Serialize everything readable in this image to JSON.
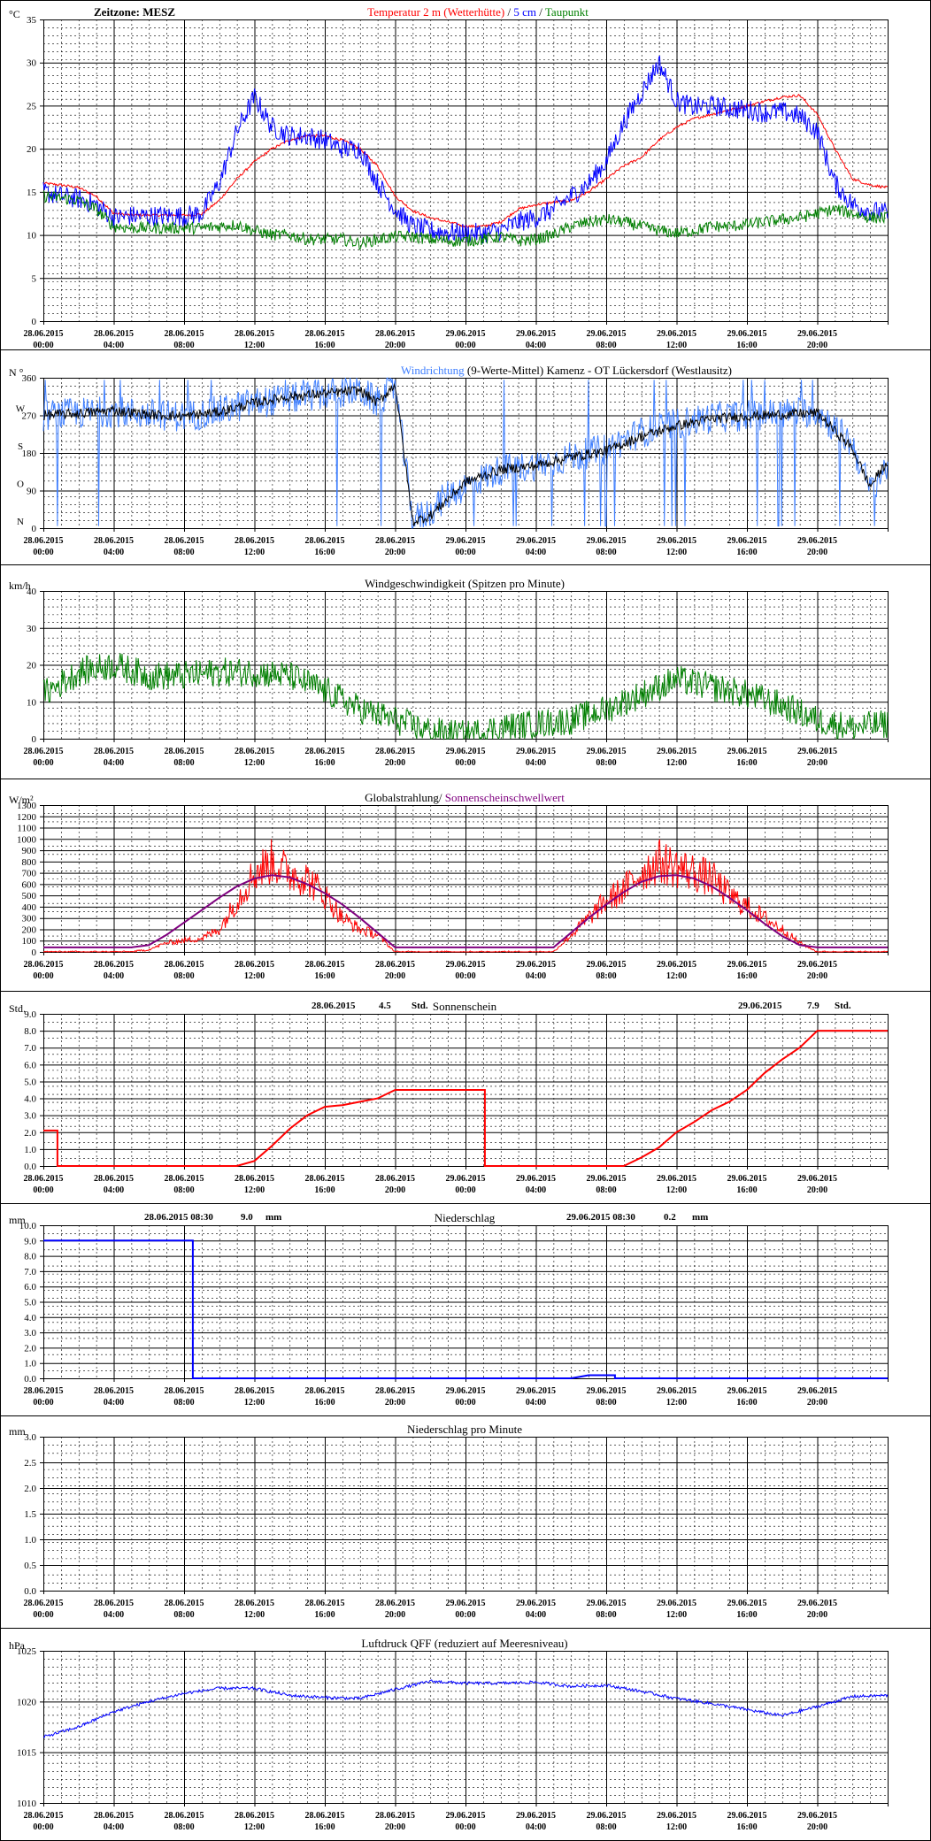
{
  "x_tick_labels": [
    [
      "28.06.2015",
      "00:00"
    ],
    [
      "28.06.2015",
      "04:00"
    ],
    [
      "28.06.2015",
      "08:00"
    ],
    [
      "28.06.2015",
      "12:00"
    ],
    [
      "28.06.2015",
      "16:00"
    ],
    [
      "28.06.2015",
      "20:00"
    ],
    [
      "29.06.2015",
      "00:00"
    ],
    [
      "29.06.2015",
      "04:00"
    ],
    [
      "29.06.2015",
      "08:00"
    ],
    [
      "29.06.2015",
      "12:00"
    ],
    [
      "29.06.2015",
      "16:00"
    ],
    [
      "29.06.2015",
      "20:00"
    ]
  ],
  "colors": {
    "red": "#ff0000",
    "blue": "#0000ff",
    "lightblue": "#3f7fff",
    "green": "#007f00",
    "purple": "#7f007f",
    "black": "#000000",
    "grid": "#000000"
  },
  "charts": [
    {
      "id": "temperature",
      "unit": "°C",
      "header_left": "Zeitzone: MESZ",
      "title_parts": [
        {
          "text": "Temperatur 2 m (Wetterhütte)",
          "color": "red"
        },
        {
          "text": "  /  ",
          "color": "black"
        },
        {
          "text": "5 cm",
          "color": "blue"
        },
        {
          "text": " / ",
          "color": "black"
        },
        {
          "text": "Taupunkt",
          "color": "green"
        }
      ],
      "ylim": [
        0,
        35
      ],
      "y_ticks": [
        0,
        5,
        10,
        15,
        20,
        25,
        30,
        35
      ],
      "y_tick_labels": [
        "0",
        "5",
        "10",
        "15",
        "20",
        "25",
        "30",
        "35"
      ],
      "series": [
        {
          "color": "red",
          "noise": 0.15,
          "x": [
            0,
            1,
            2,
            3,
            4,
            5,
            6,
            7,
            8,
            9,
            10,
            11,
            12,
            13,
            14,
            15,
            16,
            17,
            18,
            19,
            20,
            21,
            22,
            23,
            24,
            25,
            26,
            27,
            28,
            29,
            30,
            31,
            32,
            33,
            34,
            35,
            36,
            37,
            38,
            39,
            40,
            41,
            42,
            43,
            44,
            45,
            46,
            47,
            48
          ],
          "y": [
            16,
            15.8,
            15.5,
            14.5,
            12.5,
            12.3,
            12.3,
            12.3,
            12.3,
            12.4,
            14,
            16.5,
            18.5,
            20,
            21,
            21.5,
            21.5,
            21,
            20,
            18,
            14.5,
            12.8,
            12,
            11.5,
            11,
            11,
            11.5,
            13,
            13.5,
            13.8,
            14,
            15,
            16.5,
            18,
            19,
            21,
            22.5,
            23.5,
            24,
            24.5,
            25,
            25.5,
            26,
            26.2,
            24,
            20,
            16.5,
            15.8,
            15.5
          ]
        },
        {
          "color": "blue",
          "noise": 1.2,
          "x": [
            0,
            1,
            2,
            3,
            4,
            5,
            6,
            7,
            8,
            9,
            10,
            11,
            12,
            13,
            14,
            15,
            16,
            17,
            18,
            19,
            20,
            21,
            22,
            23,
            24,
            25,
            26,
            27,
            28,
            29,
            30,
            31,
            32,
            33,
            34,
            35,
            36,
            37,
            38,
            39,
            40,
            41,
            42,
            43,
            44,
            45,
            46,
            47,
            48
          ],
          "y": [
            15,
            14.5,
            14.2,
            13.5,
            12,
            12.2,
            12.2,
            12.2,
            12.2,
            12.5,
            16,
            22,
            26,
            22.5,
            21.5,
            21.5,
            21,
            20,
            20,
            16,
            13,
            11,
            10.5,
            10.3,
            10.2,
            10.2,
            10.5,
            11.5,
            12,
            13,
            14.5,
            16,
            18.5,
            23,
            26.5,
            30,
            25.5,
            24.8,
            25,
            24.7,
            24.5,
            24.2,
            24.3,
            23.8,
            22,
            16,
            13.5,
            12.8,
            12.5
          ]
        },
        {
          "color": "green",
          "noise": 0.7,
          "x": [
            0,
            1,
            2,
            3,
            4,
            5,
            6,
            7,
            8,
            9,
            10,
            11,
            12,
            13,
            14,
            15,
            16,
            17,
            18,
            19,
            20,
            21,
            22,
            23,
            24,
            25,
            26,
            27,
            28,
            29,
            30,
            31,
            32,
            33,
            34,
            35,
            36,
            37,
            38,
            39,
            40,
            41,
            42,
            43,
            44,
            45,
            46,
            47,
            48
          ],
          "y": [
            14.5,
            14.3,
            14,
            13,
            11,
            10.8,
            10.8,
            10.8,
            10.8,
            10.8,
            11,
            11.2,
            10.5,
            10,
            10,
            9.5,
            9.5,
            9.5,
            9,
            9.5,
            9.8,
            9.8,
            9.5,
            9.3,
            9.3,
            9.5,
            9.8,
            9.3,
            9.5,
            10,
            11,
            11.5,
            11.8,
            11.5,
            11,
            10.5,
            10.2,
            10.5,
            11,
            11,
            11.2,
            11.5,
            11.8,
            12,
            12.5,
            13,
            12.5,
            12,
            12
          ]
        }
      ]
    },
    {
      "id": "wind_direction",
      "unit": "N °",
      "title_parts": [
        {
          "text": "Windrichtung",
          "color": "lightblue"
        },
        {
          "text": " (9-Werte-Mittel)",
          "color": "black"
        },
        {
          "text": "          Kamenz - OT Lückersdorf (Westlausitz)",
          "color": "black"
        }
      ],
      "ylim": [
        0,
        360
      ],
      "y_ticks": [
        0,
        90,
        180,
        270,
        360
      ],
      "y_tick_labels": [
        "0",
        "90",
        "180",
        "270",
        "360"
      ],
      "y_tick_letters": [
        "N",
        "O",
        "S",
        "W"
      ],
      "series": [
        {
          "color": "lightblue",
          "noise": 38,
          "spikes": true,
          "x": [
            0,
            2,
            4,
            6,
            8,
            10,
            12,
            14,
            16,
            18,
            19,
            20,
            21,
            22,
            23,
            24,
            25,
            26,
            28,
            30,
            32,
            34,
            36,
            38,
            40,
            42,
            44,
            46,
            47,
            48
          ],
          "y": [
            270,
            275,
            280,
            272,
            268,
            280,
            300,
            310,
            320,
            330,
            300,
            340,
            20,
            40,
            80,
            100,
            120,
            140,
            150,
            170,
            190,
            230,
            250,
            265,
            270,
            275,
            280,
            200,
            90,
            150
          ]
        },
        {
          "color": "black",
          "noise": 12,
          "x": [
            0,
            2,
            4,
            6,
            8,
            10,
            12,
            14,
            16,
            18,
            19,
            20,
            21,
            22,
            23,
            24,
            25,
            26,
            28,
            30,
            32,
            34,
            36,
            38,
            40,
            42,
            44,
            46,
            47,
            48
          ],
          "y": [
            270,
            275,
            282,
            272,
            268,
            278,
            300,
            315,
            322,
            330,
            300,
            345,
            15,
            30,
            70,
            110,
            125,
            140,
            150,
            170,
            185,
            220,
            245,
            262,
            268,
            272,
            276,
            190,
            100,
            160
          ]
        }
      ]
    },
    {
      "id": "wind_speed",
      "unit": "km/h",
      "title_parts": [
        {
          "text": "Windgeschwindigkeit (Spitzen pro Minute)",
          "color": "black"
        }
      ],
      "ylim": [
        0,
        40
      ],
      "y_ticks": [
        0,
        10,
        20,
        30,
        40
      ],
      "y_tick_labels": [
        "0",
        "10",
        "20",
        "30",
        "40"
      ],
      "series": [
        {
          "color": "green",
          "noise": 4,
          "x": [
            0,
            2,
            4,
            6,
            8,
            10,
            12,
            14,
            16,
            18,
            20,
            22,
            24,
            26,
            28,
            30,
            32,
            34,
            36,
            38,
            40,
            42,
            44,
            46,
            48
          ],
          "y": [
            12,
            18,
            20,
            17,
            17,
            18,
            18,
            17,
            13,
            8,
            5,
            2,
            1,
            3,
            4,
            5,
            8,
            12,
            16,
            14,
            12,
            9,
            5,
            3,
            4
          ]
        }
      ]
    },
    {
      "id": "radiation",
      "unit": "W/m²",
      "title_parts": [
        {
          "text": "Globalstrahlung/ ",
          "color": "black"
        },
        {
          "text": "Sonnenscheinschwellwert",
          "color": "purple"
        }
      ],
      "ylim": [
        0,
        1300
      ],
      "y_ticks": [
        0,
        100,
        200,
        300,
        400,
        500,
        600,
        700,
        800,
        900,
        1000,
        1100,
        1200,
        1300
      ],
      "y_tick_labels": [
        "0",
        "100",
        "200",
        "300",
        "400",
        "500",
        "600",
        "700",
        "800",
        "900",
        "1000",
        "1100",
        "1200",
        "1300"
      ],
      "series": [
        {
          "color": "red",
          "noise": 180,
          "radiation": true,
          "x": [
            0,
            5,
            6,
            7,
            8,
            9,
            10,
            11,
            12,
            13,
            14,
            15,
            16,
            17,
            18,
            19,
            20,
            24,
            29,
            30,
            31,
            32,
            33,
            34,
            35,
            36,
            37,
            38,
            39,
            40,
            41,
            42,
            43,
            44,
            48
          ],
          "y": [
            0,
            0,
            20,
            80,
            100,
            120,
            200,
            450,
            700,
            800,
            700,
            650,
            500,
            300,
            200,
            150,
            0,
            0,
            0,
            150,
            300,
            450,
            550,
            700,
            800,
            750,
            700,
            650,
            500,
            400,
            300,
            200,
            80,
            0,
            0
          ]
        },
        {
          "color": "purple",
          "noise": 0,
          "x": [
            0,
            5,
            6,
            7,
            8,
            9,
            10,
            11,
            12,
            13,
            14,
            15,
            16,
            17,
            18,
            19,
            20,
            24,
            29,
            30,
            31,
            32,
            33,
            34,
            35,
            36,
            37,
            38,
            39,
            40,
            41,
            42,
            43,
            44,
            48
          ],
          "y": [
            40,
            40,
            60,
            150,
            260,
            370,
            480,
            580,
            650,
            680,
            660,
            600,
            520,
            420,
            300,
            170,
            40,
            40,
            40,
            170,
            300,
            420,
            530,
            620,
            670,
            680,
            650,
            580,
            480,
            370,
            250,
            140,
            60,
            40,
            40
          ]
        }
      ]
    },
    {
      "id": "sunshine",
      "unit": "Std.",
      "title_parts": [
        {
          "text": "Sonnenschein",
          "color": "black"
        }
      ],
      "annot": [
        {
          "day": "28.06.2015",
          "value": "4.5",
          "unit": "Std."
        },
        {
          "day": "29.06.2015",
          "value": "7.9",
          "unit": "Std."
        }
      ],
      "ylim": [
        0,
        9
      ],
      "y_ticks": [
        0,
        1,
        2,
        3,
        4,
        5,
        6,
        7,
        8,
        9
      ],
      "y_tick_labels": [
        "0.0",
        "1.0",
        "2.0",
        "3.0",
        "4.0",
        "5.0",
        "6.0",
        "7.0",
        "8.0",
        "9.0"
      ],
      "series": [
        {
          "color": "red",
          "noise": 0,
          "x": [
            0,
            0.8,
            0.8,
            11,
            12,
            13,
            14,
            15,
            16,
            17,
            18,
            19,
            20,
            25.1,
            25.1,
            33,
            34,
            35,
            36,
            37,
            38,
            39,
            40,
            41,
            42,
            43,
            44,
            48
          ],
          "y": [
            2.1,
            2.1,
            0,
            0,
            0.3,
            1.2,
            2.2,
            3,
            3.5,
            3.6,
            3.8,
            4,
            4.5,
            4.5,
            0,
            0,
            0.5,
            1.1,
            2,
            2.6,
            3.3,
            3.8,
            4.5,
            5.5,
            6.3,
            7,
            8,
            8
          ]
        }
      ]
    },
    {
      "id": "precipitation",
      "unit": "mm",
      "title_parts": [
        {
          "text": "Niederschlag",
          "color": "black"
        }
      ],
      "annot": [
        {
          "day": "28.06.2015 08:30",
          "value": "9.0",
          "unit": "mm"
        },
        {
          "day": "29.06.2015 08:30",
          "value": "0.2",
          "unit": "mm"
        }
      ],
      "ylim": [
        0,
        10
      ],
      "y_ticks": [
        0,
        1,
        2,
        3,
        4,
        5,
        6,
        7,
        8,
        9,
        10
      ],
      "y_tick_labels": [
        "0.0",
        "1.0",
        "2.0",
        "3.0",
        "4.0",
        "5.0",
        "6.0",
        "7.0",
        "8.0",
        "9.0",
        "10.0"
      ],
      "series": [
        {
          "color": "blue",
          "noise": 0,
          "x": [
            0,
            8.5,
            8.5,
            30,
            31,
            32.5,
            32.5,
            48
          ],
          "y": [
            9,
            9,
            0,
            0,
            0.2,
            0.2,
            0,
            0
          ]
        }
      ]
    },
    {
      "id": "precipitation_minute",
      "unit": "mm",
      "title_parts": [
        {
          "text": "Niederschlag pro Minute",
          "color": "black"
        }
      ],
      "ylim": [
        0,
        3
      ],
      "y_ticks": [
        0,
        0.5,
        1,
        1.5,
        2,
        2.5,
        3
      ],
      "y_tick_labels": [
        "0.0",
        "0.5",
        "1.0",
        "1.5",
        "2.0",
        "2.5",
        "3.0"
      ],
      "series": []
    },
    {
      "id": "pressure",
      "unit": "hPa",
      "title_parts": [
        {
          "text": "Luftdruck QFF (reduziert auf Meeresniveau)",
          "color": "black"
        }
      ],
      "ylim": [
        1010,
        1025
      ],
      "y_ticks": [
        1010,
        1015,
        1020,
        1025
      ],
      "y_tick_labels": [
        "1010",
        "1015",
        "1020",
        "1025"
      ],
      "series": [
        {
          "color": "blue",
          "noise": 0.15,
          "x": [
            0,
            2,
            4,
            6,
            8,
            10,
            12,
            14,
            16,
            18,
            20,
            22,
            24,
            26,
            28,
            30,
            32,
            34,
            36,
            38,
            40,
            42,
            44,
            46,
            48
          ],
          "y": [
            1016.5,
            1017.5,
            1019,
            1020,
            1020.8,
            1021.3,
            1021.3,
            1020.6,
            1020.4,
            1020.3,
            1021.2,
            1022,
            1021.8,
            1021.8,
            1021.9,
            1021.5,
            1021.6,
            1021,
            1020.3,
            1019.8,
            1019.2,
            1018.6,
            1019.5,
            1020.5,
            1020.6
          ]
        }
      ]
    }
  ]
}
